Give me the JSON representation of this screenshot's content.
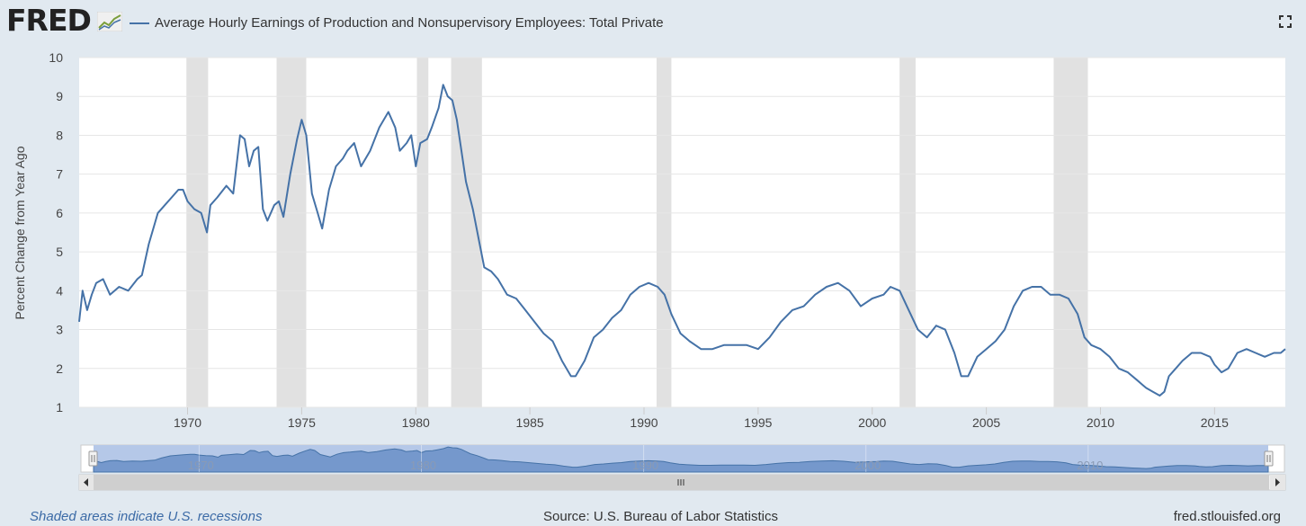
{
  "header": {
    "logo": "FRED",
    "logo_icon": "line-chart-icon",
    "fullscreen_icon": "fullscreen-icon"
  },
  "chart_data": {
    "type": "line",
    "title": "Average Hourly Earnings of Production and Nonsupervisory Employees: Total Private",
    "ylabel": "Percent Change from Year Ago",
    "xlabel": "",
    "ylim": [
      1,
      10
    ],
    "xlim": [
      1965.25,
      2018.1
    ],
    "yticks": [
      "1",
      "2",
      "3",
      "4",
      "5",
      "6",
      "7",
      "8",
      "9",
      "10"
    ],
    "xticks": [
      "1970",
      "1975",
      "1980",
      "1985",
      "1990",
      "1995",
      "2000",
      "2005",
      "2010",
      "2015"
    ],
    "navigator_ticks": [
      "1970",
      "1980",
      "1990",
      "2000",
      "2010"
    ],
    "grid": true,
    "legend_position": "top-left",
    "color": "#4572a7",
    "recessions": [
      [
        1969.95,
        1970.9
      ],
      [
        1973.9,
        1975.2
      ],
      [
        1980.05,
        1980.55
      ],
      [
        1981.55,
        1982.9
      ],
      [
        1990.55,
        1991.2
      ],
      [
        2001.2,
        2001.9
      ],
      [
        2007.95,
        2009.45
      ]
    ],
    "series": [
      {
        "x": [
          1965.25,
          1965.4,
          1965.6,
          1965.8,
          1966.0,
          1966.3,
          1966.6,
          1967.0,
          1967.4,
          1967.8,
          1968.0,
          1968.3,
          1968.7,
          1969.0,
          1969.3,
          1969.6,
          1969.8,
          1970.0,
          1970.3,
          1970.6,
          1970.85,
          1971.0,
          1971.3,
          1971.7,
          1972.0,
          1972.3,
          1972.5,
          1972.7,
          1972.9,
          1973.1,
          1973.3,
          1973.5,
          1973.8,
          1974.0,
          1974.2,
          1974.5,
          1974.8,
          1975.0,
          1975.2,
          1975.45,
          1975.7,
          1975.9,
          1976.2,
          1976.5,
          1976.8,
          1977.0,
          1977.3,
          1977.6,
          1978.0,
          1978.4,
          1978.8,
          1979.1,
          1979.3,
          1979.6,
          1979.8,
          1980.0,
          1980.2,
          1980.5,
          1980.7,
          1981.0,
          1981.2,
          1981.4,
          1981.6,
          1981.8,
          1982.0,
          1982.2,
          1982.5,
          1982.8,
          1983.0,
          1983.3,
          1983.6,
          1984.0,
          1984.4,
          1984.8,
          1985.2,
          1985.6,
          1986.0,
          1986.4,
          1986.8,
          1987.0,
          1987.4,
          1987.8,
          1988.2,
          1988.6,
          1989.0,
          1989.4,
          1989.8,
          1990.2,
          1990.6,
          1990.9,
          1991.2,
          1991.6,
          1992.0,
          1992.5,
          1993.0,
          1993.5,
          1994.0,
          1994.5,
          1995.0,
          1995.5,
          1996.0,
          1996.5,
          1997.0,
          1997.5,
          1998.0,
          1998.5,
          1999.0,
          1999.5,
          2000.0,
          2000.5,
          2000.8,
          2001.2,
          2001.6,
          2002.0,
          2002.4,
          2002.8,
          2003.2,
          2003.6,
          2003.9,
          2004.2,
          2004.6,
          2005.0,
          2005.4,
          2005.8,
          2006.2,
          2006.6,
          2007.0,
          2007.4,
          2007.8,
          2008.2,
          2008.6,
          2009.0,
          2009.3,
          2009.6,
          2010.0,
          2010.4,
          2010.8,
          2011.2,
          2011.6,
          2012.0,
          2012.3,
          2012.6,
          2012.8,
          2013.0,
          2013.3,
          2013.6,
          2014.0,
          2014.4,
          2014.8,
          2015.0,
          2015.3,
          2015.6,
          2016.0,
          2016.4,
          2016.8,
          2017.2,
          2017.6,
          2017.9,
          2018.1
        ],
        "values": [
          3.2,
          4.0,
          3.5,
          3.9,
          4.2,
          4.3,
          3.9,
          4.1,
          4.0,
          4.3,
          4.4,
          5.2,
          6.0,
          6.2,
          6.4,
          6.6,
          6.6,
          6.3,
          6.1,
          6.0,
          5.5,
          6.2,
          6.4,
          6.7,
          6.5,
          8.0,
          7.9,
          7.2,
          7.6,
          7.7,
          6.1,
          5.8,
          6.2,
          6.3,
          5.9,
          7.0,
          7.9,
          8.4,
          8.0,
          6.5,
          6.0,
          5.6,
          6.6,
          7.2,
          7.4,
          7.6,
          7.8,
          7.2,
          7.6,
          8.2,
          8.6,
          8.2,
          7.6,
          7.8,
          8.0,
          7.2,
          7.8,
          7.9,
          8.2,
          8.7,
          9.3,
          9.0,
          8.9,
          8.4,
          7.6,
          6.8,
          6.1,
          5.2,
          4.6,
          4.5,
          4.3,
          3.9,
          3.8,
          3.5,
          3.2,
          2.9,
          2.7,
          2.2,
          1.8,
          1.8,
          2.2,
          2.8,
          3.0,
          3.3,
          3.5,
          3.9,
          4.1,
          4.2,
          4.1,
          3.9,
          3.4,
          2.9,
          2.7,
          2.5,
          2.5,
          2.6,
          2.6,
          2.6,
          2.5,
          2.8,
          3.2,
          3.5,
          3.6,
          3.9,
          4.1,
          4.2,
          4.0,
          3.6,
          3.8,
          3.9,
          4.1,
          4.0,
          3.5,
          3.0,
          2.8,
          3.1,
          3.0,
          2.4,
          1.8,
          1.8,
          2.3,
          2.5,
          2.7,
          3.0,
          3.6,
          4.0,
          4.1,
          4.1,
          3.9,
          3.9,
          3.8,
          3.4,
          2.8,
          2.6,
          2.5,
          2.3,
          2.0,
          1.9,
          1.7,
          1.5,
          1.4,
          1.3,
          1.4,
          1.8,
          2.0,
          2.2,
          2.4,
          2.4,
          2.3,
          2.1,
          1.9,
          2.0,
          2.4,
          2.5,
          2.4,
          2.3,
          2.4,
          2.4,
          2.5
        ]
      }
    ]
  },
  "navigator": {
    "scroll_left_icon": "arrow-left-icon",
    "scroll_right_icon": "arrow-right-icon",
    "grip_icon": "grip-icon"
  },
  "footer": {
    "recession_note": "Shaded areas indicate U.S. recessions",
    "source": "Source: U.S. Bureau of Labor Statistics",
    "site": "fred.stlouisfed.org"
  }
}
